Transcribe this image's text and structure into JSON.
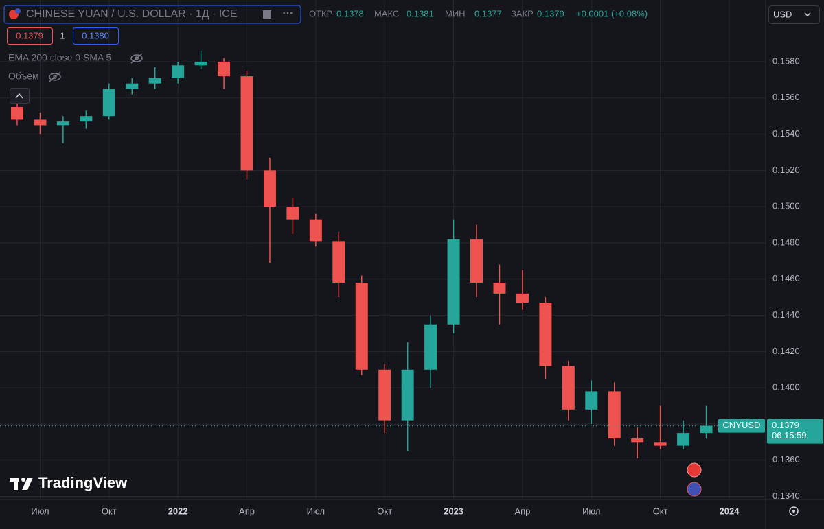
{
  "header": {
    "title": "CHINESE YUAN / U.S. DOLLAR · 1Д · ICE",
    "ohlc": [
      {
        "label": "ОТКР",
        "value": "0.1378"
      },
      {
        "label": "МАКС",
        "value": "0.1381"
      },
      {
        "label": "МИН",
        "value": "0.1377"
      },
      {
        "label": "ЗАКР",
        "value": "0.1379"
      }
    ],
    "change": "+0.0001 (+0.08%)",
    "sell": "0.1379",
    "quantity": "1",
    "buy": "0.1380",
    "indicator": "EMA 200 close 0 SMA 5",
    "volume": "Объём",
    "currency": "USD",
    "brand": "TradingView"
  },
  "chart_data": {
    "type": "candlestick",
    "x": [
      "2021-06",
      "2021-07",
      "2021-08",
      "2021-09",
      "2021-10",
      "2021-11",
      "2021-12",
      "2022-01",
      "2022-02",
      "2022-03",
      "2022-04",
      "2022-05",
      "2022-06",
      "2022-07",
      "2022-08",
      "2022-09",
      "2022-10",
      "2022-11",
      "2022-12",
      "2023-01",
      "2023-02",
      "2023-03",
      "2023-04",
      "2023-05",
      "2023-06",
      "2023-07",
      "2023-08",
      "2023-09",
      "2023-10",
      "2023-11",
      "2023-12"
    ],
    "open": [
      0.1555,
      0.1548,
      0.1545,
      0.1547,
      0.155,
      0.1565,
      0.1568,
      0.1571,
      0.1578,
      0.158,
      0.1572,
      0.152,
      0.15,
      0.1493,
      0.1481,
      0.1458,
      0.141,
      0.1382,
      0.141,
      0.1435,
      0.1482,
      0.1458,
      0.1452,
      0.1447,
      0.1412,
      0.1388,
      0.1398,
      0.1372,
      0.137,
      0.1368,
      0.1375
    ],
    "high": [
      0.1565,
      0.1552,
      0.155,
      0.1553,
      0.1568,
      0.1571,
      0.1577,
      0.158,
      0.1586,
      0.1582,
      0.1575,
      0.1527,
      0.1505,
      0.1496,
      0.1486,
      0.1462,
      0.1413,
      0.1425,
      0.144,
      0.1493,
      0.149,
      0.1468,
      0.1465,
      0.145,
      0.1415,
      0.1404,
      0.1403,
      0.1378,
      0.139,
      0.1382,
      0.139
    ],
    "low": [
      0.1545,
      0.154,
      0.1535,
      0.1543,
      0.1548,
      0.1562,
      0.1565,
      0.1568,
      0.1576,
      0.1565,
      0.1515,
      0.1469,
      0.1485,
      0.1478,
      0.145,
      0.1407,
      0.1375,
      0.1365,
      0.14,
      0.143,
      0.145,
      0.1435,
      0.1443,
      0.1405,
      0.1382,
      0.138,
      0.1368,
      0.1361,
      0.1366,
      0.1366,
      0.1372
    ],
    "close": [
      0.1548,
      0.1545,
      0.1547,
      0.155,
      0.1565,
      0.1568,
      0.1571,
      0.1578,
      0.158,
      0.1572,
      0.152,
      0.15,
      0.1493,
      0.1481,
      0.1458,
      0.141,
      0.1382,
      0.141,
      0.1435,
      0.1482,
      0.1458,
      0.1452,
      0.1447,
      0.1412,
      0.1388,
      0.1398,
      0.1372,
      0.137,
      0.1368,
      0.1375,
      0.1379
    ],
    "up_color": "#26a69a",
    "down_color": "#ef5350",
    "xlim": [
      "2021-06",
      "2024-01"
    ],
    "xticks": [
      {
        "value": "2021-07",
        "label": "Июл"
      },
      {
        "value": "2021-10",
        "label": "Окт"
      },
      {
        "value": "2022-01",
        "label": "2022"
      },
      {
        "value": "2022-04",
        "label": "Апр"
      },
      {
        "value": "2022-07",
        "label": "Июл"
      },
      {
        "value": "2022-10",
        "label": "Окт"
      },
      {
        "value": "2023-01",
        "label": "2023"
      },
      {
        "value": "2023-04",
        "label": "Апр"
      },
      {
        "value": "2023-07",
        "label": "Июл"
      },
      {
        "value": "2023-10",
        "label": "Окт"
      },
      {
        "value": "2024-01",
        "label": "2024"
      }
    ],
    "ylim": [
      0.13383,
      0.16141
    ],
    "yticks": [
      {
        "value": 0.134,
        "label": "0.1340"
      },
      {
        "value": 0.136,
        "label": "0.1360"
      },
      {
        "value": 0.138,
        "label": "0.1380"
      },
      {
        "value": 0.14,
        "label": "0.1400"
      },
      {
        "value": 0.142,
        "label": "0.1420"
      },
      {
        "value": 0.144,
        "label": "0.1440"
      },
      {
        "value": 0.146,
        "label": "0.1460"
      },
      {
        "value": 0.148,
        "label": "0.1480"
      },
      {
        "value": 0.15,
        "label": "0.1500"
      },
      {
        "value": 0.152,
        "label": "0.1520"
      },
      {
        "value": 0.154,
        "label": "0.1540"
      },
      {
        "value": 0.156,
        "label": "0.1560"
      },
      {
        "value": 0.158,
        "label": "0.1580"
      }
    ],
    "grid": true,
    "last_price": {
      "symbol": "CNYUSD",
      "value": 0.1379,
      "countdown": "06:15:59"
    }
  }
}
